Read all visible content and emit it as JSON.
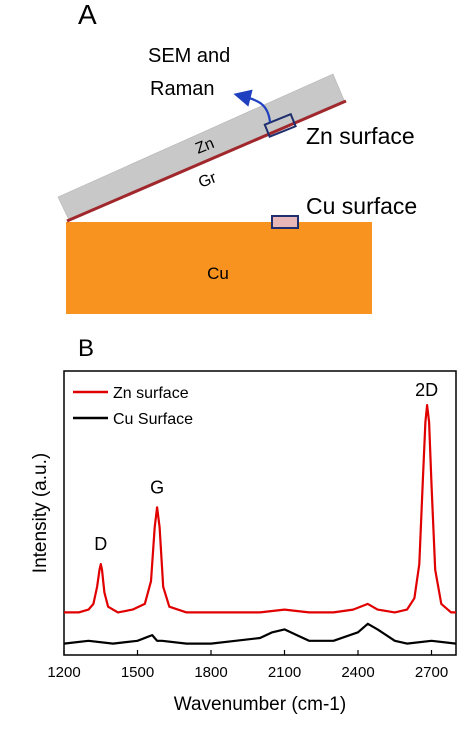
{
  "panel_a": {
    "label": "A",
    "sem_raman_line1": "SEM and",
    "sem_raman_line2": "Raman",
    "zn_label": "Zn",
    "gr_label": "Gr",
    "cu_label": "Cu",
    "zn_surface_label": "Zn surface",
    "cu_surface_label": "Cu surface",
    "colors": {
      "zn_plate": "#c8c8c8",
      "graphene_line": "#a0282d",
      "cu_block": "#f7931e",
      "box_outline": "#1f2f6e",
      "arrow": "#1e3fbf"
    }
  },
  "panel_b": {
    "label": "B",
    "ylabel": "Intensity (a.u.)",
    "xlabel": "Wavenumber (cm-1)",
    "legend": [
      "Zn surface",
      "Cu Surface"
    ],
    "peak_labels": [
      {
        "text": "D",
        "x": 1350
      },
      {
        "text": "G",
        "x": 1580
      },
      {
        "text": "2D",
        "x": 2680
      }
    ]
  },
  "chart_data": {
    "type": "line",
    "xlim": [
      1200,
      2800
    ],
    "xticks": [
      "1200",
      "1500",
      "1800",
      "2100",
      "2400",
      "2700"
    ],
    "ylim": [
      0,
      1
    ],
    "legend_position": "top-left",
    "series": [
      {
        "name": "Zn surface",
        "color": "#e00000",
        "x": [
          1200,
          1260,
          1300,
          1320,
          1335,
          1345,
          1350,
          1355,
          1365,
          1380,
          1420,
          1480,
          1530,
          1555,
          1570,
          1580,
          1590,
          1605,
          1630,
          1700,
          1800,
          1900,
          2000,
          2100,
          2200,
          2300,
          2380,
          2440,
          2480,
          2550,
          2600,
          2630,
          2650,
          2665,
          2675,
          2682,
          2690,
          2700,
          2715,
          2740,
          2780,
          2800
        ],
        "y": [
          0.15,
          0.15,
          0.16,
          0.18,
          0.24,
          0.3,
          0.32,
          0.3,
          0.22,
          0.17,
          0.15,
          0.16,
          0.18,
          0.26,
          0.45,
          0.52,
          0.45,
          0.24,
          0.17,
          0.15,
          0.15,
          0.15,
          0.15,
          0.16,
          0.15,
          0.15,
          0.16,
          0.18,
          0.16,
          0.15,
          0.16,
          0.2,
          0.32,
          0.62,
          0.82,
          0.88,
          0.82,
          0.6,
          0.3,
          0.18,
          0.15,
          0.15
        ]
      },
      {
        "name": "Cu Surface",
        "color": "#000000",
        "x": [
          1200,
          1300,
          1400,
          1500,
          1560,
          1580,
          1600,
          1700,
          1800,
          1900,
          2000,
          2050,
          2100,
          2150,
          2200,
          2300,
          2400,
          2440,
          2480,
          2550,
          2600,
          2700,
          2800
        ],
        "y": [
          0.04,
          0.05,
          0.04,
          0.05,
          0.07,
          0.05,
          0.05,
          0.04,
          0.04,
          0.05,
          0.06,
          0.08,
          0.09,
          0.07,
          0.05,
          0.05,
          0.08,
          0.11,
          0.09,
          0.05,
          0.04,
          0.05,
          0.04
        ]
      }
    ]
  }
}
